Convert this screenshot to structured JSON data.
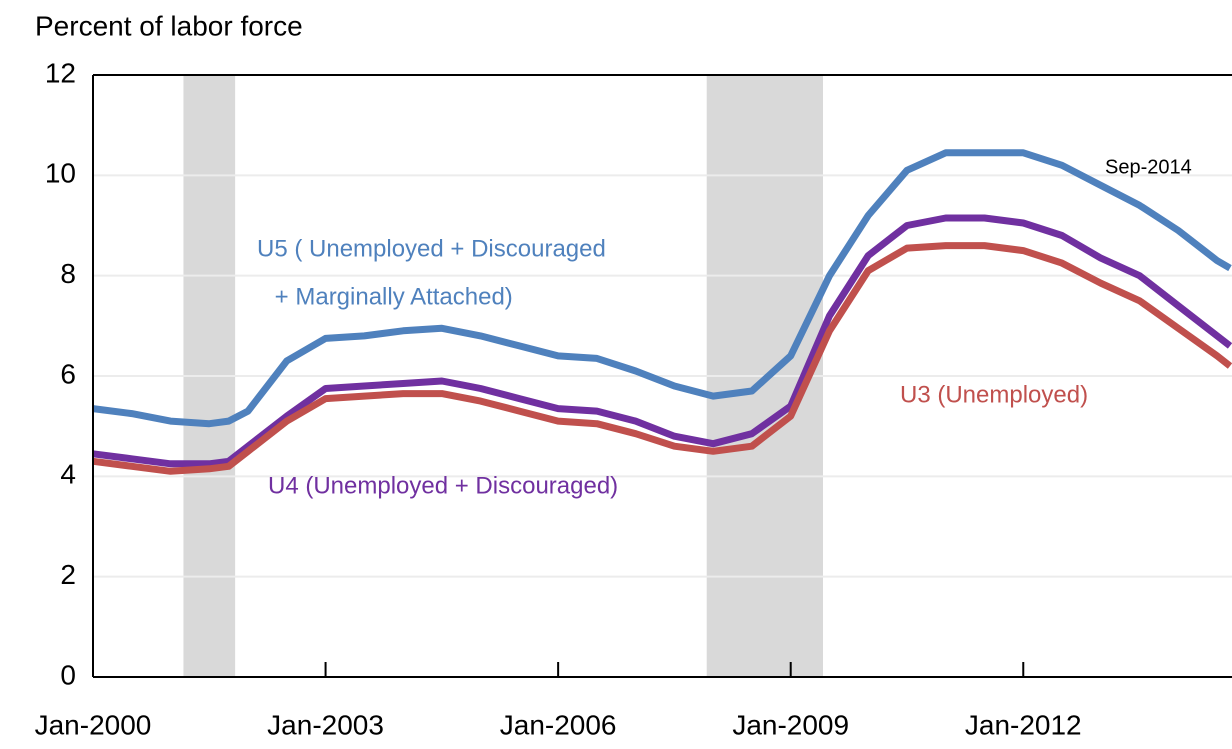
{
  "chart_data": {
    "type": "line",
    "y_axis_label": "Percent of labor force",
    "x": [
      "2000-01",
      "2000-07",
      "2001-01",
      "2001-07",
      "2001-10",
      "2002-01",
      "2002-07",
      "2003-01",
      "2003-07",
      "2004-01",
      "2004-07",
      "2005-01",
      "2005-07",
      "2006-01",
      "2006-07",
      "2007-01",
      "2007-07",
      "2008-01",
      "2008-07",
      "2009-01",
      "2009-07",
      "2010-01",
      "2010-07",
      "2011-01",
      "2011-07",
      "2012-01",
      "2012-07",
      "2013-01",
      "2013-07",
      "2014-01",
      "2014-07",
      "2014-09"
    ],
    "series": [
      {
        "name": "U5",
        "color": "#4f81bd",
        "values": [
          5.35,
          5.25,
          5.1,
          5.05,
          5.1,
          5.3,
          6.3,
          6.75,
          6.8,
          6.9,
          6.95,
          6.8,
          6.6,
          6.4,
          6.35,
          6.1,
          5.8,
          5.6,
          5.7,
          6.4,
          8.0,
          9.2,
          10.1,
          10.45,
          10.45,
          10.45,
          10.2,
          9.8,
          9.4,
          8.9,
          8.3,
          8.15
        ]
      },
      {
        "name": "U4",
        "color": "#7030a0",
        "values": [
          4.45,
          4.35,
          4.25,
          4.25,
          4.3,
          4.6,
          5.2,
          5.75,
          5.8,
          5.85,
          5.9,
          5.75,
          5.55,
          5.35,
          5.3,
          5.1,
          4.8,
          4.65,
          4.85,
          5.4,
          7.2,
          8.4,
          9.0,
          9.15,
          9.15,
          9.05,
          8.8,
          8.35,
          8.0,
          7.4,
          6.8,
          6.6
        ]
      },
      {
        "name": "U3",
        "color": "#c0504d",
        "values": [
          4.3,
          4.2,
          4.1,
          4.15,
          4.2,
          4.5,
          5.1,
          5.55,
          5.6,
          5.65,
          5.65,
          5.5,
          5.3,
          5.1,
          5.05,
          4.85,
          4.6,
          4.5,
          4.6,
          5.2,
          6.9,
          8.1,
          8.55,
          8.6,
          8.6,
          8.5,
          8.25,
          7.85,
          7.5,
          6.95,
          6.4,
          6.2
        ]
      }
    ],
    "recessions": [
      [
        "2001-03",
        "2001-11"
      ],
      [
        "2007-12",
        "2009-06"
      ]
    ],
    "recession_color": "#d9d9d9",
    "annotations": [
      {
        "text": "U5 ( Unemployed + Discouraged",
        "color": "#4f81bd"
      },
      {
        "text": " + Marginally Attached)",
        "color": "#4f81bd"
      },
      {
        "text": "U4 (Unemployed + Discouraged)",
        "color": "#7030a0"
      },
      {
        "text": "U3 (Unemployed)",
        "color": "#c0504d"
      },
      {
        "text": "Sep-2014",
        "color": "#000000"
      }
    ],
    "xlim": [
      "2000-01",
      "2014-09"
    ],
    "xticks": [
      {
        "value": "2000-01",
        "label": "Jan-2000"
      },
      {
        "value": "2003-01",
        "label": "Jan-2003"
      },
      {
        "value": "2006-01",
        "label": "Jan-2006"
      },
      {
        "value": "2009-01",
        "label": "Jan-2009"
      },
      {
        "value": "2012-01",
        "label": "Jan-2012"
      }
    ],
    "ylim": [
      0,
      12
    ],
    "yticks": [
      0,
      2,
      4,
      6,
      8,
      10,
      12
    ],
    "grid": true
  }
}
